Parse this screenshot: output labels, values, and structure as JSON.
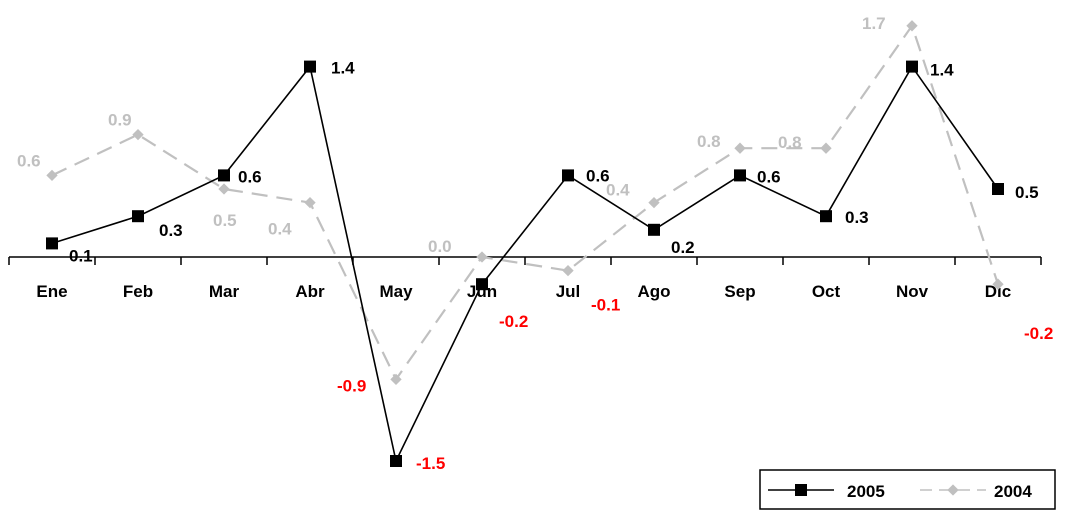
{
  "chart_data": {
    "type": "line",
    "categories": [
      "Ene",
      "Feb",
      "Mar",
      "Abr",
      "May",
      "Jun",
      "Jul",
      "Ago",
      "Sep",
      "Oct",
      "Nov",
      "Dic"
    ],
    "series": [
      {
        "name": "2005",
        "values": [
          0.1,
          0.3,
          0.6,
          1.4,
          -1.5,
          -0.2,
          0.6,
          0.2,
          0.6,
          0.3,
          1.4,
          0.5
        ],
        "labels": [
          "0.1",
          "0.3",
          "0.6",
          "1.4",
          "-1.5",
          "-0.2",
          "0.6",
          "0.2",
          "0.6",
          "0.3",
          "1.4",
          "0.5"
        ],
        "color": "#000000",
        "line_style": "solid",
        "marker": "square"
      },
      {
        "name": "2004",
        "values": [
          0.6,
          0.9,
          0.5,
          0.4,
          -0.9,
          0.0,
          -0.1,
          0.4,
          0.8,
          0.8,
          1.7,
          -0.2
        ],
        "labels": [
          "0.6",
          "0.9",
          "0.5",
          "0.4",
          "-0.9",
          "0.0",
          "-0.1",
          "0.4",
          "0.8",
          "0.8",
          "1.7",
          "-0.2"
        ],
        "color": "#c0c0c0",
        "line_style": "dashed",
        "marker": "diamond"
      }
    ],
    "title": "",
    "xlabel": "",
    "ylabel": "",
    "ylim": [
      -1.5,
      1.7
    ],
    "grid": false,
    "legend_position": "bottom-right",
    "negative_label_color": "#ff0000"
  }
}
